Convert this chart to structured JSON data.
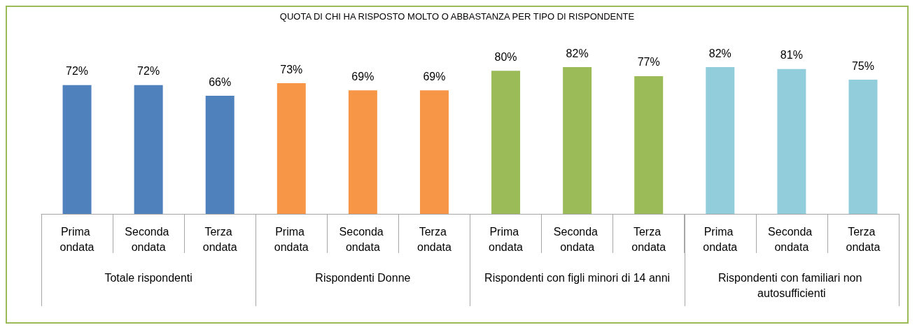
{
  "chart_data": {
    "type": "bar",
    "title": "QUOTA DI CHI HA RISPOSTO MOLTO O ABBASTANZA PER TIPO DI RISPONDENTE",
    "categories": [
      "Prima ondata",
      "Seconda ondata",
      "Terza ondata",
      "Prima ondata",
      "Seconda ondata",
      "Terza ondata",
      "Prima ondata",
      "Seconda ondata",
      "Terza ondata",
      "Prima ondata",
      "Seconda ondata",
      "Terza ondata"
    ],
    "values": [
      72,
      72,
      66,
      73,
      69,
      69,
      80,
      82,
      77,
      82,
      81,
      75
    ],
    "colors": [
      "#4f81bd",
      "#4f81bd",
      "#4f81bd",
      "#f79646",
      "#f79646",
      "#f79646",
      "#9bbb59",
      "#9bbb59",
      "#9bbb59",
      "#92cddc",
      "#92cddc",
      "#92cddc"
    ],
    "value_labels": [
      "72%",
      "72%",
      "66%",
      "73%",
      "69%",
      "69%",
      "80%",
      "82%",
      "77%",
      "82%",
      "81%",
      "75%"
    ],
    "annotations": [
      "Totale rispondenti",
      "Rispondenti Donne",
      "Rispondenti con figli minori di 14 anni",
      "Rispondenti con familiari non autosufficienti"
    ]
  }
}
